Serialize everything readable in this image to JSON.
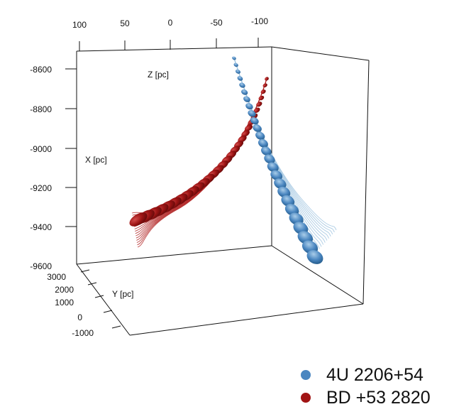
{
  "chart_data": {
    "type": "scatter",
    "projection": "3d",
    "axes": {
      "z": {
        "label": "Z [pc]",
        "ticks": [
          "100",
          "50",
          "0",
          "-50",
          "-100"
        ]
      },
      "x": {
        "label": "X [pc]",
        "ticks": [
          "-8600",
          "-8800",
          "-9000",
          "-9200",
          "-9400",
          "-9600"
        ]
      },
      "y": {
        "label": "Y [pc]",
        "ticks": [
          "3000",
          "2000",
          "1000",
          "0",
          "-1000"
        ]
      }
    },
    "series": [
      {
        "name": "4U 2206+54",
        "color": "#4a86c0",
        "line_color": "#9dc3df"
      },
      {
        "name": "BD +53 2820",
        "color": "#a11414",
        "line_color": "#b22424"
      }
    ],
    "legend": "bottom-right"
  }
}
